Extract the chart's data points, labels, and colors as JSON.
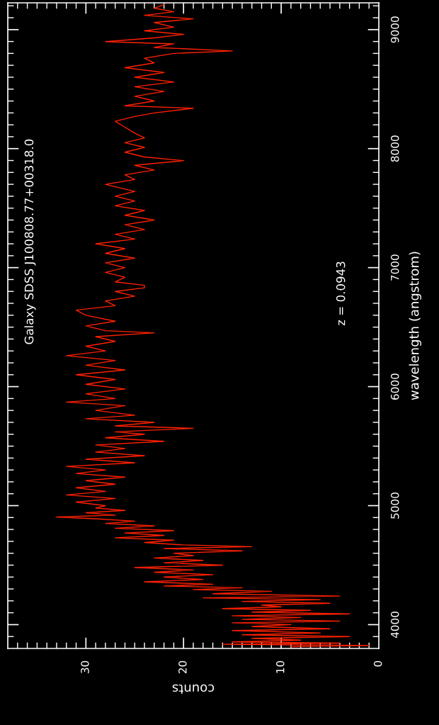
{
  "chart_data": {
    "type": "line",
    "title": "Galaxy SDSS J100808.77+00318.0",
    "xlabel": "counts",
    "ylabel": "wavelength (angstrom)",
    "annotations": [
      "z = 0.0943"
    ],
    "ylim": [
      3800,
      9225
    ],
    "yticks": [
      4000,
      5000,
      6000,
      7000,
      8000,
      9000
    ],
    "xlim": [
      38,
      0
    ],
    "xticks": [
      0,
      10,
      20,
      30
    ],
    "grid": false,
    "legend": false,
    "marker": "none",
    "line_style": "solid",
    "series": [
      {
        "color": "#ff2000",
        "values": [
          3815,
          3825,
          3835,
          3845,
          3855,
          3870,
          3885,
          3900,
          3915,
          3930,
          3950,
          3965,
          3985,
          4000,
          4015,
          4030,
          4045,
          4060,
          4075,
          4090,
          4105,
          4120,
          4135,
          4150,
          4165,
          4180,
          4195,
          4210,
          4225,
          4240,
          4260,
          4280,
          4295,
          4310,
          4325,
          4340,
          4360,
          4380,
          4400,
          4420,
          4440,
          4460,
          4480,
          4500,
          4520,
          4540,
          4560,
          4580,
          4600,
          4620,
          4640,
          4655,
          4670,
          4690,
          4710,
          4730,
          4750,
          4770,
          4790,
          4810,
          4830,
          4850,
          4870,
          4890,
          4905,
          4920,
          4940,
          4960,
          4980,
          5000,
          5030,
          5060,
          5090,
          5120,
          5150,
          5180,
          5210,
          5240,
          5270,
          5300,
          5330,
          5360,
          5390,
          5420,
          5450,
          5480,
          5510,
          5540,
          5570,
          5600,
          5620,
          5650,
          5670,
          5700,
          5730,
          5760,
          5800,
          5840,
          5870,
          5900,
          5940,
          5980,
          6020,
          6060,
          6100,
          6140,
          6180,
          6220,
          6260,
          6300,
          6340,
          6380,
          6420,
          6452,
          6470,
          6510,
          6550,
          6600,
          6643,
          6680,
          6720,
          6760,
          6800,
          6830,
          6851,
          6880,
          6920,
          6960,
          7000,
          7040,
          7080,
          7120,
          7160,
          7200,
          7240,
          7280,
          7320,
          7360,
          7400,
          7440,
          7480,
          7520,
          7560,
          7600,
          7640,
          7700,
          7740,
          7780,
          7820,
          7860,
          7899,
          7930,
          7970,
          8010,
          8050,
          8090,
          8130,
          8180,
          8230,
          8270,
          8300,
          8339,
          8360,
          8400,
          8440,
          8480,
          8520,
          8560,
          8600,
          8640,
          8680,
          8720,
          8760,
          8800,
          8821,
          8850,
          8880,
          8899,
          8930,
          8960,
          8990,
          9020,
          9060,
          9090,
          9120,
          9150,
          9180,
          9210
        ],
        "x": [
          9,
          1,
          16,
          4,
          15,
          8,
          13,
          3,
          14,
          6,
          15,
          5,
          13,
          9,
          15,
          4,
          14,
          8,
          15,
          3,
          13,
          7,
          16,
          10,
          12,
          5,
          14,
          6,
          18,
          4,
          17,
          11,
          19,
          14,
          22,
          17,
          24,
          18,
          22,
          17,
          23,
          19,
          25,
          16,
          22,
          18,
          23,
          19,
          21,
          14,
          22,
          13,
          20,
          24,
          21,
          27,
          22,
          26,
          21,
          27,
          23,
          28,
          25,
          29,
          33,
          27,
          30,
          26,
          29,
          28,
          31,
          27,
          32,
          28,
          31,
          27,
          30,
          26,
          31,
          28,
          32,
          25,
          30,
          24,
          29,
          26,
          29,
          22,
          28,
          24,
          27,
          19,
          27,
          23,
          30,
          25,
          29,
          26,
          32,
          27,
          30,
          26,
          30,
          27,
          31,
          26,
          30,
          27,
          32,
          28,
          30,
          27,
          29,
          23,
          28,
          30,
          27,
          30,
          31,
          27,
          28,
          25,
          27,
          24,
          24,
          27,
          26,
          28,
          26,
          28,
          25,
          28,
          26,
          29,
          25,
          27,
          24,
          26,
          23,
          26,
          24,
          27,
          25,
          27,
          25,
          28,
          25,
          26,
          23,
          25,
          20,
          24,
          26,
          24,
          26,
          24,
          25,
          26,
          27,
          25,
          23,
          19,
          26,
          23,
          25,
          22,
          25,
          21,
          25,
          22,
          26,
          23,
          24,
          21,
          15,
          23,
          21,
          28,
          23,
          20,
          24,
          21,
          23,
          19,
          24,
          21,
          23,
          22
        ]
      }
    ]
  }
}
